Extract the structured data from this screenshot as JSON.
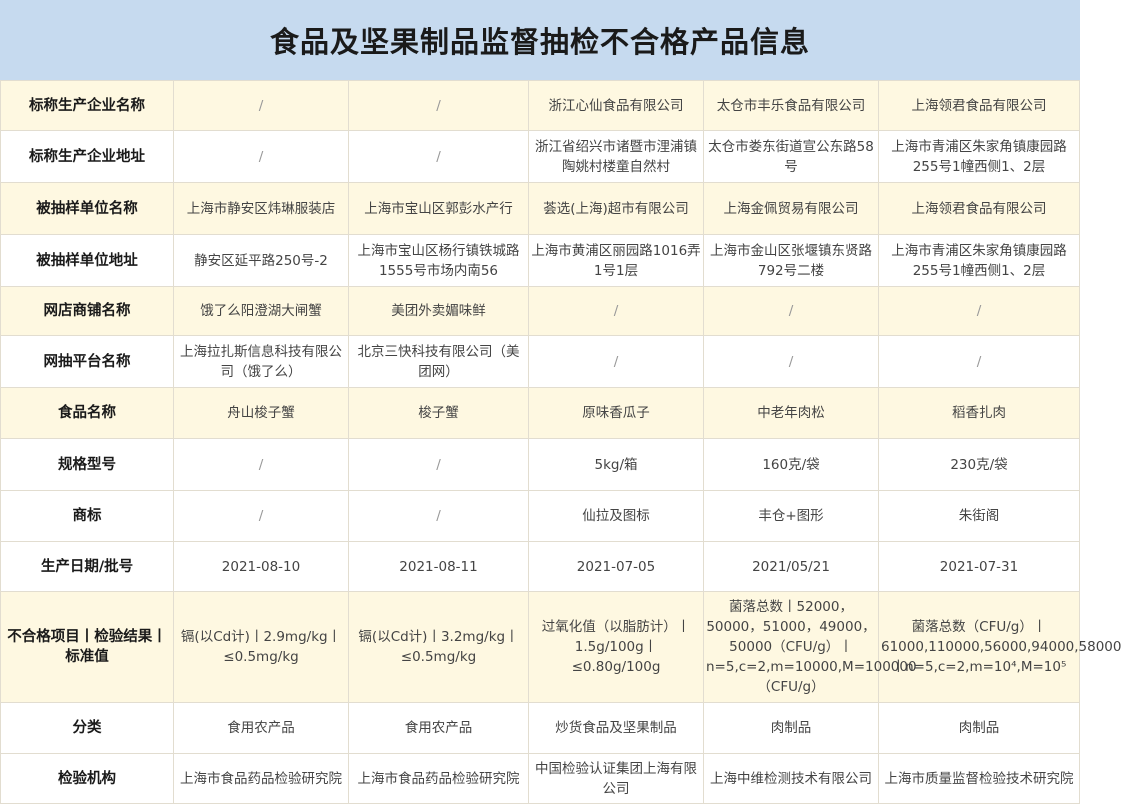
{
  "title": "食品及坚果制品监督抽检不合格产品信息",
  "rows": [
    {
      "label": "标称生产企业名称",
      "cells": [
        "/",
        "/",
        "浙江心仙食品有限公司",
        "太仓市丰乐食品有限公司",
        "上海领君食品有限公司"
      ]
    },
    {
      "label": "标称生产企业地址",
      "cells": [
        "/",
        "/",
        "浙江省绍兴市诸暨市浬浦镇陶姚村楼童自然村",
        "太仓市娄东街道宣公东路58号",
        "上海市青浦区朱家角镇康园路255号1幢西侧1、2层"
      ]
    },
    {
      "label": "被抽样单位名称",
      "cells": [
        "上海市静安区炜琳服装店",
        "上海市宝山区郭彭水产行",
        "荟选(上海)超市有限公司",
        "上海金佩贸易有限公司",
        "上海领君食品有限公司"
      ]
    },
    {
      "label": "被抽样单位地址",
      "cells": [
        "静安区延平路250号-2",
        "上海市宝山区杨行镇铁城路1555号市场内南56",
        "上海市黄浦区丽园路1016弄1号1层",
        "上海市金山区张堰镇东贤路792号二楼",
        "上海市青浦区朱家角镇康园路255号1幢西侧1、2层"
      ]
    },
    {
      "label": "网店商铺名称",
      "cells": [
        "饿了么阳澄湖大闸蟹",
        "美团外卖媚味鲜",
        "/",
        "/",
        "/"
      ]
    },
    {
      "label": "网抽平台名称",
      "cells": [
        "上海拉扎斯信息科技有限公司（饿了么）",
        "北京三快科技有限公司（美团网）",
        "/",
        "/",
        "/"
      ]
    },
    {
      "label": "食品名称",
      "cells": [
        "舟山梭子蟹",
        "梭子蟹",
        "原味香瓜子",
        "中老年肉松",
        "稻香扎肉"
      ]
    },
    {
      "label": "规格型号",
      "cells": [
        "/",
        "/",
        "5kg/箱",
        "160克/袋",
        "230克/袋"
      ]
    },
    {
      "label": "商标",
      "cells": [
        "/",
        "/",
        "仙拉及图标",
        "丰仓+图形",
        "朱街阁"
      ]
    },
    {
      "label": "生产日期/批号",
      "cells": [
        "2021-08-10",
        "2021-08-11",
        "2021-07-05",
        "2021/05/21",
        "2021-07-31"
      ]
    },
    {
      "label": "不合格项目丨检验结果丨标准值",
      "cells": [
        "镉(以Cd计)丨2.9mg/kg丨≤0.5mg/kg",
        "镉(以Cd计)丨3.2mg/kg丨≤0.5mg/kg",
        "过氧化值（以脂肪计）丨1.5g/100g丨≤0.80g/100g",
        "菌落总数丨52000，50000，51000，49000，50000（CFU/g）丨n=5,c=2,m=10000,M=100000（CFU/g）",
        "菌落总数（CFU/g）丨61000,110000,56000,94000,58000丨n=5,c=2,m=10⁴,M=10⁵"
      ]
    },
    {
      "label": "分类",
      "cells": [
        "食用农产品",
        "食用农产品",
        "炒货食品及坚果制品",
        "肉制品",
        "肉制品"
      ]
    },
    {
      "label": "检验机构",
      "cells": [
        "上海市食品药品检验研究院",
        "上海市食品药品检验研究院",
        "中国检验认证集团上海有限公司",
        "上海中维检测技术有限公司",
        "上海市质量监督检验技术研究院"
      ]
    }
  ]
}
